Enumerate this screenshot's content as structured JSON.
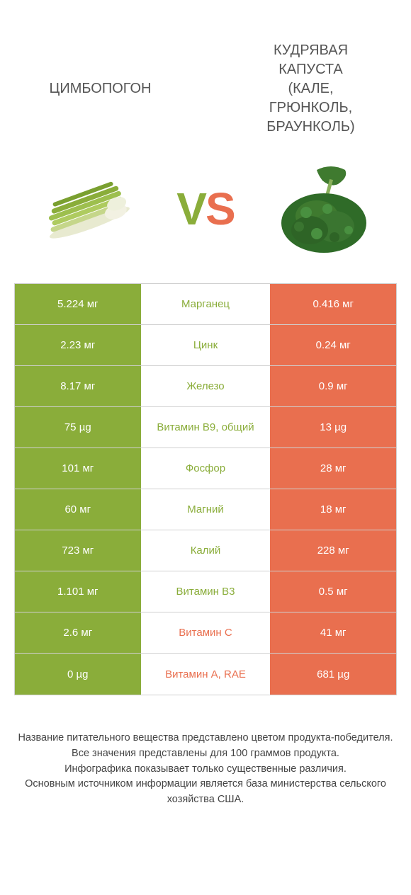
{
  "colors": {
    "green": "#8aad3a",
    "orange": "#e96f4f",
    "text": "#555555"
  },
  "header": {
    "left_title": "ЦИМБОПОГОН",
    "right_title": "КУДРЯВАЯ\nКАПУСТА\n(КАЛЕ,\nГРЮНКОЛЬ,\nБРАУНКОЛЬ)"
  },
  "vs": {
    "v": "V",
    "s": "S"
  },
  "rows": [
    {
      "left": "5.224 мг",
      "name": "Марганец",
      "right": "0.416 мг",
      "winner": "left"
    },
    {
      "left": "2.23 мг",
      "name": "Цинк",
      "right": "0.24 мг",
      "winner": "left"
    },
    {
      "left": "8.17 мг",
      "name": "Железо",
      "right": "0.9 мг",
      "winner": "left"
    },
    {
      "left": "75 µg",
      "name": "Витамин B9, общий",
      "right": "13 µg",
      "winner": "left"
    },
    {
      "left": "101 мг",
      "name": "Фосфор",
      "right": "28 мг",
      "winner": "left"
    },
    {
      "left": "60 мг",
      "name": "Магний",
      "right": "18 мг",
      "winner": "left"
    },
    {
      "left": "723 мг",
      "name": "Калий",
      "right": "228 мг",
      "winner": "left"
    },
    {
      "left": "1.101 мг",
      "name": "Витамин B3",
      "right": "0.5 мг",
      "winner": "left"
    },
    {
      "left": "2.6 мг",
      "name": "Витамин C",
      "right": "41 мг",
      "winner": "right"
    },
    {
      "left": "0 µg",
      "name": "Витамин A, RAE",
      "right": "681 µg",
      "winner": "right"
    }
  ],
  "footer": {
    "l1": "Название питательного вещества представлено цветом продукта-победителя.",
    "l2": "Все значения представлены для 100 граммов продукта.",
    "l3": "Инфографика показывает только существенные различия.",
    "l4": "Основным источником информации является база министерства сельского хозяйства США."
  }
}
